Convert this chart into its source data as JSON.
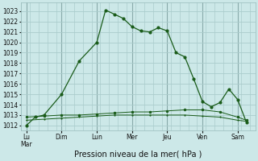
{
  "bg_color": "#cce8e8",
  "grid_color": "#aacccc",
  "line_color": "#1a5c1a",
  "xlabel": "Pression niveau de la mer( hPa )",
  "ylim": [
    1011.5,
    1023.8
  ],
  "yticks": [
    1012,
    1013,
    1014,
    1015,
    1016,
    1017,
    1018,
    1019,
    1020,
    1021,
    1022,
    1023
  ],
  "day_labels": [
    "Lu\nMar",
    "Dim",
    "Lun",
    "Mer",
    "Jeu",
    "Ven",
    "Sam"
  ],
  "day_positions": [
    0,
    2,
    4,
    6,
    8,
    10,
    12
  ],
  "xlim": [
    -0.3,
    13.0
  ],
  "line1_x": [
    0,
    0.5,
    1.0,
    2.0,
    3.0,
    4.0,
    4.5,
    5.0,
    5.5,
    6.0,
    6.5,
    7.0,
    7.5,
    8.0,
    8.5,
    9.0,
    9.5,
    10.0,
    10.5,
    11.0,
    11.5,
    12.0,
    12.5
  ],
  "line1_y": [
    1012.0,
    1012.8,
    1013.0,
    1015.0,
    1018.2,
    1020.0,
    1023.1,
    1022.7,
    1022.3,
    1021.5,
    1021.1,
    1021.0,
    1021.4,
    1021.1,
    1019.0,
    1018.6,
    1016.5,
    1014.3,
    1013.8,
    1014.2,
    1015.5,
    1014.5,
    1012.3
  ],
  "line2_x": [
    0,
    1,
    2,
    3,
    4,
    5,
    6,
    7,
    8,
    9,
    10,
    11,
    12,
    12.5
  ],
  "line2_y": [
    1012.8,
    1012.9,
    1013.0,
    1013.0,
    1013.1,
    1013.2,
    1013.3,
    1013.3,
    1013.4,
    1013.5,
    1013.5,
    1013.3,
    1012.8,
    1012.5
  ],
  "line3_x": [
    0,
    1,
    2,
    3,
    4,
    5,
    6,
    7,
    8,
    9,
    10,
    11,
    12,
    12.5
  ],
  "line3_y": [
    1012.5,
    1012.6,
    1012.7,
    1012.8,
    1012.9,
    1013.0,
    1013.0,
    1013.0,
    1013.0,
    1013.0,
    1012.9,
    1012.8,
    1012.5,
    1012.4
  ],
  "tick_label_size": 5.5,
  "xlabel_size": 7.0
}
